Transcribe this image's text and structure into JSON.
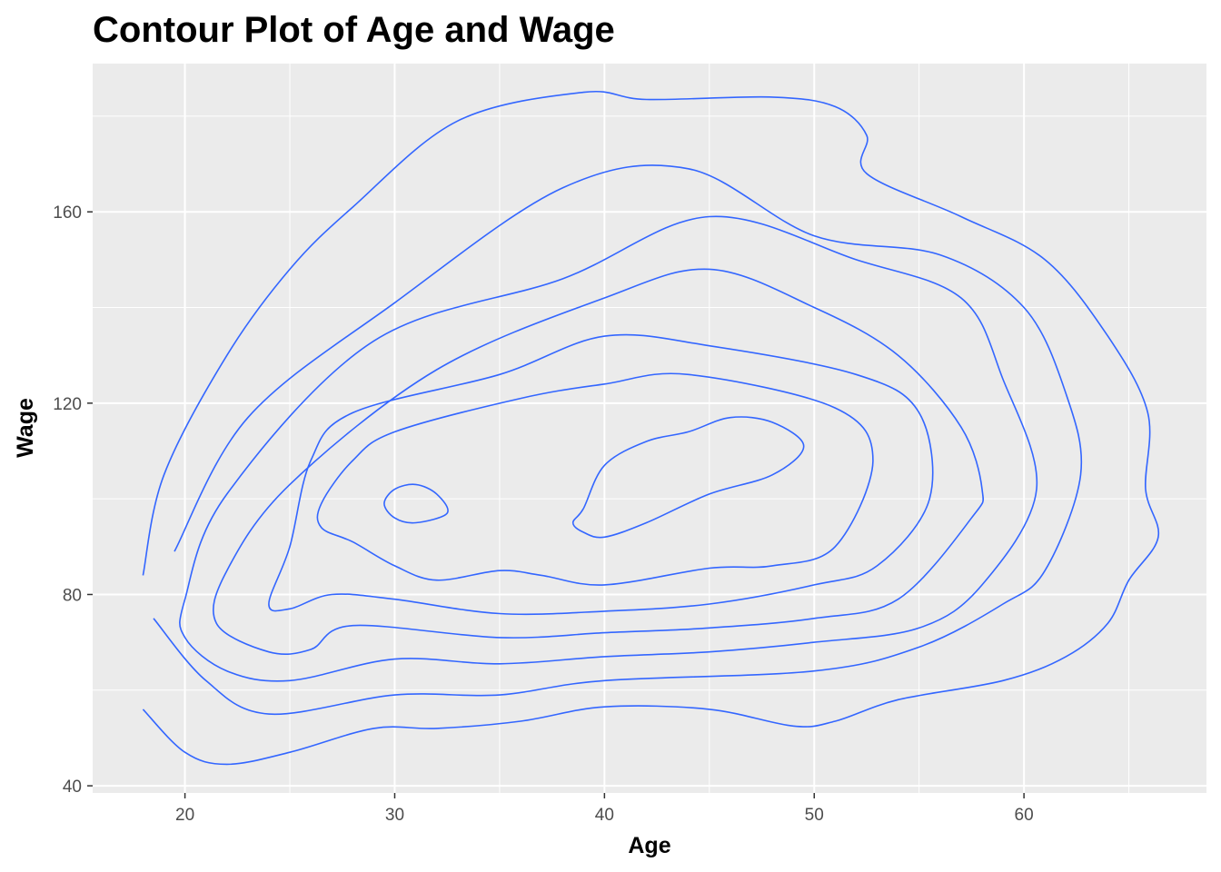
{
  "chart_data": {
    "type": "contour",
    "title": "Contour Plot of Age and Wage",
    "xlabel": "Age",
    "ylabel": "Wage",
    "xlim": [
      15.6,
      68.7
    ],
    "ylim": [
      38.5,
      191
    ],
    "x_ticks": [
      20,
      30,
      40,
      50,
      60
    ],
    "y_ticks": [
      40,
      80,
      120,
      160
    ],
    "x_tick_labels": [
      "20",
      "30",
      "40",
      "50",
      "60"
    ],
    "y_tick_labels": [
      "40",
      "80",
      "120",
      "160"
    ],
    "grid": true,
    "panel_background": "#ebebeb",
    "line_color": "#3366ff",
    "contours": [
      {
        "level": 1,
        "points": [
          [
            18,
            56
          ],
          [
            20,
            47
          ],
          [
            22,
            44.5
          ],
          [
            25,
            47
          ],
          [
            29,
            52
          ],
          [
            32,
            52
          ],
          [
            36,
            53.5
          ],
          [
            40,
            56.5
          ],
          [
            45,
            56
          ],
          [
            49,
            52.5
          ],
          [
            51,
            53.5
          ],
          [
            54,
            58
          ],
          [
            59,
            62
          ],
          [
            62,
            67
          ],
          [
            64,
            74
          ],
          [
            65,
            83
          ],
          [
            66.4,
            92
          ],
          [
            65.8,
            102
          ],
          [
            65.9,
            118
          ],
          [
            64,
            134
          ],
          [
            61,
            150
          ],
          [
            57,
            159
          ],
          [
            52.5,
            168
          ],
          [
            52.5,
            176
          ],
          [
            51,
            182
          ],
          [
            48,
            184
          ],
          [
            42,
            183.5
          ],
          [
            39,
            185
          ],
          [
            33,
            179
          ],
          [
            28,
            161
          ],
          [
            25,
            148
          ],
          [
            22,
            130
          ],
          [
            19,
            105
          ],
          [
            18,
            84
          ]
        ]
      },
      {
        "level": 2,
        "points": [
          [
            18.5,
            75
          ],
          [
            21,
            62
          ],
          [
            24,
            55
          ],
          [
            30,
            59
          ],
          [
            35,
            59
          ],
          [
            40,
            62
          ],
          [
            50,
            64
          ],
          [
            55,
            69
          ],
          [
            59,
            78
          ],
          [
            61,
            85
          ],
          [
            62.7,
            105
          ],
          [
            62,
            122
          ],
          [
            60,
            140
          ],
          [
            56,
            151
          ],
          [
            50,
            155
          ],
          [
            44,
            169
          ],
          [
            38,
            165
          ],
          [
            30,
            141
          ],
          [
            23,
            117
          ],
          [
            19.5,
            89
          ]
        ]
      },
      {
        "level": 3,
        "points": [
          [
            20,
            71
          ],
          [
            22,
            64
          ],
          [
            25,
            62
          ],
          [
            30,
            66.5
          ],
          [
            35,
            65.5
          ],
          [
            40,
            67
          ],
          [
            45,
            68
          ],
          [
            50,
            70
          ],
          [
            55,
            73
          ],
          [
            58,
            82
          ],
          [
            60.6,
            102
          ],
          [
            59,
            125
          ],
          [
            57,
            142
          ],
          [
            52,
            150
          ],
          [
            45,
            159
          ],
          [
            38,
            146
          ],
          [
            29,
            133
          ],
          [
            22,
            101
          ],
          [
            20,
            79
          ]
        ]
      },
      {
        "level": 4,
        "points": [
          [
            21.5,
            74
          ],
          [
            24,
            68
          ],
          [
            26,
            68.5
          ],
          [
            28,
            73.5
          ],
          [
            35,
            71
          ],
          [
            40,
            72
          ],
          [
            45,
            73
          ],
          [
            50,
            75
          ],
          [
            54,
            79
          ],
          [
            57.5,
            96
          ],
          [
            58,
            102
          ],
          [
            57,
            115
          ],
          [
            54,
            130
          ],
          [
            50,
            140
          ],
          [
            45,
            148
          ],
          [
            40,
            142
          ],
          [
            32,
            127
          ],
          [
            25,
            103
          ],
          [
            22,
            85
          ]
        ]
      },
      {
        "level": 5,
        "points": [
          [
            24,
            78
          ],
          [
            25,
            77
          ],
          [
            27,
            80
          ],
          [
            30,
            79
          ],
          [
            35,
            76
          ],
          [
            40,
            76.5
          ],
          [
            45,
            78
          ],
          [
            50,
            82
          ],
          [
            53,
            86
          ],
          [
            55.5,
            100
          ],
          [
            55,
            118
          ],
          [
            52,
            126
          ],
          [
            45,
            132
          ],
          [
            40,
            134
          ],
          [
            35,
            126
          ],
          [
            28,
            118
          ],
          [
            26,
            108
          ],
          [
            25,
            90
          ]
        ]
      },
      {
        "level": 6,
        "points": [
          [
            26.5,
            94
          ],
          [
            28,
            91
          ],
          [
            30,
            86
          ],
          [
            32,
            83
          ],
          [
            35,
            85
          ],
          [
            37,
            84
          ],
          [
            40,
            82
          ],
          [
            45,
            85.5
          ],
          [
            48,
            86
          ],
          [
            51,
            90
          ],
          [
            52.8,
            108
          ],
          [
            51,
            119
          ],
          [
            44,
            126
          ],
          [
            40,
            124
          ],
          [
            36,
            121
          ],
          [
            30,
            114
          ],
          [
            28,
            108
          ],
          [
            26.5,
            99
          ]
        ]
      },
      {
        "level": 7,
        "points": [
          [
            29.5,
            99
          ],
          [
            30,
            96
          ],
          [
            31,
            95
          ],
          [
            32.5,
            97
          ],
          [
            32,
            101
          ],
          [
            31,
            103
          ],
          [
            30,
            102
          ]
        ]
      },
      {
        "level": 8,
        "points": [
          [
            38.5,
            95
          ],
          [
            39,
            93
          ],
          [
            40,
            92
          ],
          [
            42,
            95
          ],
          [
            45,
            101
          ],
          [
            48,
            105
          ],
          [
            49.5,
            111
          ],
          [
            48,
            116
          ],
          [
            46,
            117
          ],
          [
            44,
            114
          ],
          [
            42,
            112
          ],
          [
            40,
            107
          ],
          [
            39,
            98
          ]
        ]
      }
    ]
  }
}
